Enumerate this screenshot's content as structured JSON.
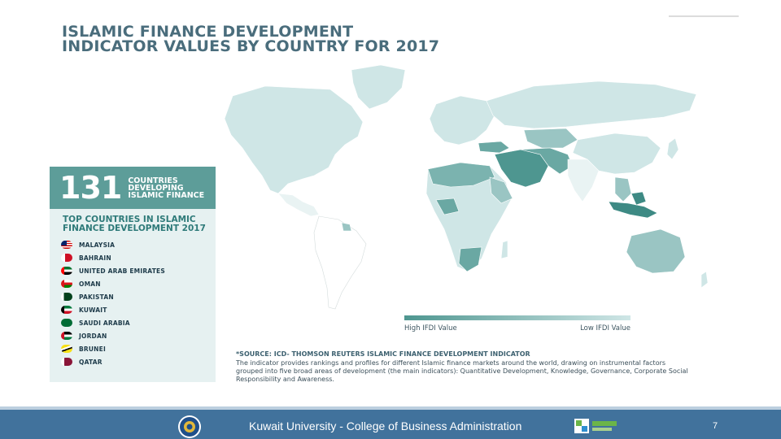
{
  "title": {
    "line1": "ISLAMIC FINANCE DEVELOPMENT",
    "line2": "INDICATOR VALUES BY COUNTRY FOR 2017"
  },
  "panel": {
    "count": "131",
    "count_label": "COUNTRIES DEVELOPING ISLAMIC FINANCE",
    "subtitle": "TOP COUNTRIES IN ISLAMIC FINANCE DEVELOPMENT 2017",
    "countries": [
      {
        "name": "MALAYSIA",
        "flag": "malaysia-flag-icon"
      },
      {
        "name": "BAHRAIN",
        "flag": "bahrain-flag-icon"
      },
      {
        "name": "UNITED ARAB EMIRATES",
        "flag": "uae-flag-icon"
      },
      {
        "name": "OMAN",
        "flag": "oman-flag-icon"
      },
      {
        "name": "PAKISTAN",
        "flag": "pakistan-flag-icon"
      },
      {
        "name": "KUWAIT",
        "flag": "kuwait-flag-icon"
      },
      {
        "name": "SAUDI ARABIA",
        "flag": "saudi-arabia-flag-icon"
      },
      {
        "name": "JORDAN",
        "flag": "jordan-flag-icon"
      },
      {
        "name": "BRUNEI",
        "flag": "brunei-flag-icon"
      },
      {
        "name": "QATAR",
        "flag": "qatar-flag-icon"
      }
    ]
  },
  "legend": {
    "high": "High IFDI Value",
    "low": "Low IFDI Value",
    "high_color": "#4e9690",
    "low_color": "#cfe6e6"
  },
  "source": {
    "title": "*SOURCE: ICD- THOMSON REUTERS ISLAMIC FINANCE DEVELOPMENT INDICATOR",
    "body": "The indicator provides rankings and profiles for different Islamic finance markets around the world, drawing on instrumental factors grouped into five broad areas of development (the main indicators): Quantitative Development, Knowledge, Governance, Corporate Social Responsibility and Awareness."
  },
  "footer": {
    "text": "Kuwait University - College of Business Administration",
    "page": "7"
  },
  "colors": {
    "accent": "#5d9d99",
    "title": "#4a6d7c",
    "footer_bar": "#41729c",
    "map_land": "#cfe6e6",
    "map_dark": "#4e9690"
  }
}
